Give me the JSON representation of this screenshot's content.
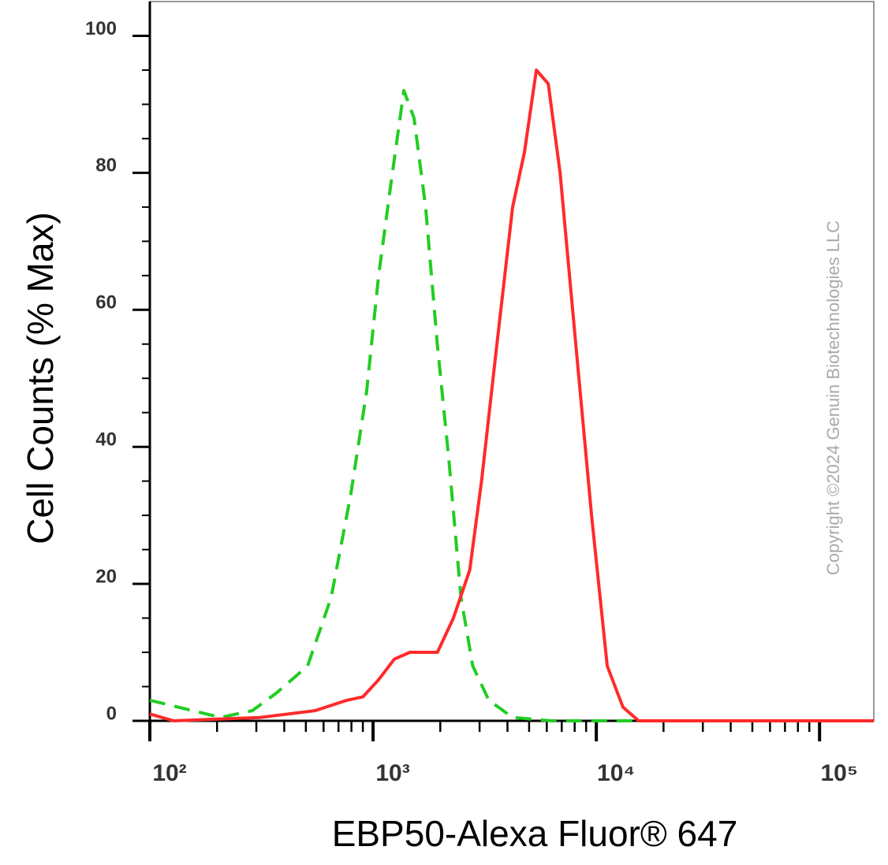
{
  "chart_data": {
    "type": "line",
    "x_label": "EBP50-Alexa Fluor® 647",
    "y_label": "Cell Counts (% Max)",
    "watermark": "Copyright ©2024 Genuin Biotechnologies LLC",
    "xscale": "log",
    "xlim": [
      100,
      175000
    ],
    "ylim": [
      0,
      105
    ],
    "xticks": [
      {
        "value": 100,
        "label": "10²"
      },
      {
        "value": 1000,
        "label": "10³"
      },
      {
        "value": 10000,
        "label": "10⁴"
      },
      {
        "value": 100000,
        "label": "10⁵"
      }
    ],
    "xminorticks": [
      200,
      300,
      400,
      500,
      600,
      700,
      800,
      900,
      2000,
      3000,
      4000,
      5000,
      6000,
      7000,
      8000,
      9000,
      20000,
      30000,
      40000,
      50000,
      60000,
      70000,
      80000,
      90000
    ],
    "yticks": [
      0,
      20,
      40,
      60,
      80,
      100
    ],
    "yminorticks": [
      5,
      10,
      15,
      25,
      30,
      35,
      45,
      50,
      55,
      65,
      70,
      75,
      85,
      90,
      95
    ],
    "series": [
      {
        "color": "#22cc22",
        "dashed": true,
        "x": [
          100,
          208,
          288,
          367,
          509,
          649,
          794,
          935,
          1059,
          1197,
          1374,
          1526,
          1719,
          1940,
          2187,
          2475,
          2797,
          3298,
          4216,
          6308,
          175000
        ],
        "values": [
          3,
          0.5,
          1.5,
          4,
          8,
          18,
          33,
          48,
          65,
          78,
          92,
          88,
          75,
          55,
          38,
          18,
          8,
          3,
          0.5,
          0,
          0
        ]
      },
      {
        "color": "#ff2a2a",
        "dashed": false,
        "x": [
          100,
          128,
          312,
          551,
          763,
          900,
          1059,
          1245,
          1463,
          1943,
          2290,
          2709,
          3061,
          3588,
          4216,
          4765,
          5387,
          6090,
          6882,
          8094,
          9520,
          11190,
          13160,
          15480,
          175000
        ],
        "values": [
          1,
          0,
          0.5,
          1.5,
          3,
          3.5,
          6,
          9,
          10,
          10,
          15,
          22,
          35,
          55,
          75,
          83,
          95,
          93,
          80,
          55,
          30,
          8,
          2,
          0,
          0
        ]
      }
    ]
  }
}
